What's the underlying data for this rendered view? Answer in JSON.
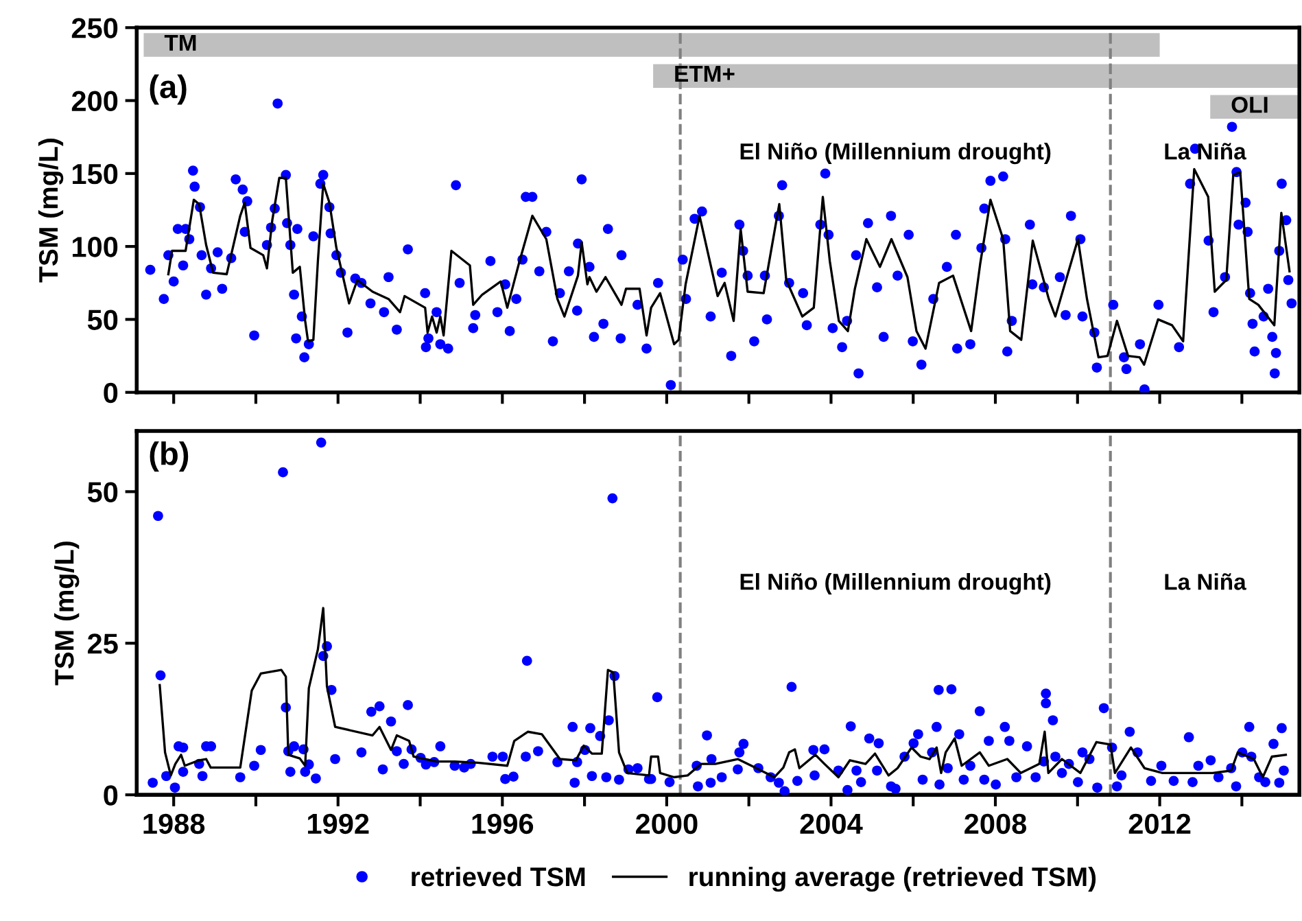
{
  "chart_data": [
    {
      "type": "scatter",
      "ylabel": "TSM (mg/L)",
      "xlim": [
        1987.1,
        2015.4
      ],
      "ylim": [
        0,
        250
      ],
      "xticks": [
        1988,
        {
          "value": 1990,
          "label": null
        },
        1992,
        {
          "value": 1994,
          "label": null
        },
        1996,
        {
          "value": 1998,
          "label": null
        },
        2000,
        {
          "value": 2002,
          "label": null
        },
        2004,
        {
          "value": 2006,
          "label": null
        },
        2008,
        {
          "value": 2010,
          "label": null
        },
        2012,
        {
          "value": 2014,
          "label": null
        }
      ],
      "yticks": [
        0,
        50,
        100,
        150,
        200,
        250
      ],
      "tick_labels": "y",
      "grid": false,
      "legend": false,
      "annotations": [
        "(a)",
        "El Niño (Millennium drought)",
        "La Niña"
      ],
      "ref_lines": [
        {
          "axis": "x",
          "value": 2000.33,
          "color": "#808080",
          "line_style": "dashed"
        },
        {
          "axis": "x",
          "value": 2010.8,
          "color": "#808080",
          "line_style": "dashed"
        }
      ],
      "bands": [
        {
          "axis": "x",
          "from": 1987.27,
          "to": 2012.0,
          "label": "TM",
          "color": "#bfbfbf"
        },
        {
          "axis": "x",
          "from": 1999.67,
          "to": 2015.4,
          "label": "ETM+",
          "color": "#bfbfbf"
        },
        {
          "axis": "x",
          "from": 2013.23,
          "to": 2015.4,
          "label": "OLI",
          "color": "#bfbfbf"
        }
      ],
      "series": [
        {
          "marker": "circle",
          "color": "#0000ff",
          "x": [
            1987.43,
            1987.76,
            1987.87,
            1988.0,
            1988.1,
            1988.23,
            1988.29,
            1988.38,
            1988.47,
            1988.51,
            1988.64,
            1988.68,
            1988.79,
            1988.91,
            1989.07,
            1989.18,
            1989.4,
            1989.51,
            1989.68,
            1989.79,
            1989.73,
            1989.96,
            1990.27,
            1990.37,
            1990.46,
            1990.53,
            1990.73,
            1990.76,
            1990.84,
            1990.93,
            1990.98,
            1991.01,
            1991.12,
            1991.18,
            1991.29,
            1991.4,
            1991.57,
            1991.64,
            1991.79,
            1991.82,
            1991.96,
            1992.07,
            1992.23,
            1992.42,
            1992.57,
            1992.79,
            1993.12,
            1993.23,
            1993.43,
            1993.7,
            1994.12,
            1994.14,
            1994.2,
            1994.4,
            1994.49,
            1994.68,
            1994.87,
            1994.96,
            1995.29,
            1995.34,
            1995.71,
            1995.88,
            1996.07,
            1996.18,
            1996.34,
            1996.49,
            1996.57,
            1996.73,
            1996.9,
            1997.07,
            1997.23,
            1997.4,
            1997.62,
            1997.84,
            1997.93,
            1997.82,
            1998.12,
            1998.23,
            1998.46,
            1998.57,
            1998.9,
            1998.88,
            1999.29,
            1999.51,
            1999.79,
            2000.1,
            2000.39,
            2000.47,
            2000.68,
            2000.86,
            2001.07,
            2001.34,
            2001.57,
            2001.77,
            2001.86,
            2001.97,
            2002.13,
            2002.39,
            2002.44,
            2002.73,
            2002.81,
            2002.98,
            2003.32,
            2003.41,
            2003.74,
            2003.86,
            2003.94,
            2004.04,
            2004.27,
            2004.39,
            2004.61,
            2004.67,
            2004.9,
            2005.12,
            2005.28,
            2005.46,
            2005.62,
            2005.89,
            2005.99,
            2006.2,
            2006.49,
            2006.82,
            2007.04,
            2007.07,
            2007.39,
            2007.66,
            2007.73,
            2007.88,
            2008.19,
            2008.24,
            2008.29,
            2008.4,
            2008.84,
            2008.9,
            2009.18,
            2009.57,
            2009.71,
            2009.84,
            2010.07,
            2010.12,
            2010.41,
            2010.47,
            2010.87,
            2011.13,
            2011.19,
            2011.52,
            2011.63,
            2011.97,
            2012.47,
            2012.74,
            2012.86,
            2013.19,
            2013.31,
            2013.59,
            2013.76,
            2013.87,
            2013.92,
            2014.09,
            2014.14,
            2014.2,
            2014.26,
            2014.31,
            2014.53,
            2014.64,
            2014.74,
            2014.8,
            2014.83,
            2014.91,
            2014.97,
            2015.08,
            2015.13,
            2015.21
          ],
          "values": [
            84,
            64,
            94,
            76,
            112,
            87,
            112,
            105,
            152,
            141,
            127,
            94,
            67,
            85,
            96,
            71,
            92,
            146,
            139,
            131,
            110,
            39,
            101,
            113,
            126,
            198,
            149,
            116,
            101,
            67,
            37,
            112,
            52,
            24,
            33,
            107,
            143,
            149,
            127,
            109,
            94,
            82,
            41,
            78,
            75,
            61,
            55,
            79,
            43,
            98,
            68,
            31,
            37,
            55,
            33,
            30,
            142,
            75,
            44,
            53,
            90,
            55,
            74,
            42,
            64,
            91,
            134,
            134,
            83,
            110,
            35,
            68,
            83,
            102,
            146,
            56,
            86,
            38,
            47,
            112,
            94,
            37,
            60,
            30,
            75,
            5,
            91,
            64,
            119,
            124,
            52,
            82,
            25,
            115,
            97,
            80,
            35,
            80,
            50,
            121,
            142,
            75,
            68,
            46,
            115,
            150,
            108,
            44,
            31,
            49,
            94,
            13,
            116,
            72,
            38,
            121,
            80,
            108,
            35,
            19,
            64,
            86,
            108,
            30,
            33,
            99,
            126,
            145,
            148,
            105,
            28,
            49,
            115,
            74,
            72,
            79,
            53,
            121,
            105,
            52,
            41,
            17,
            60,
            24,
            16,
            33,
            2,
            60,
            31,
            143,
            167,
            104,
            55,
            79,
            182,
            151,
            115,
            130,
            110,
            68,
            47,
            28,
            52,
            71,
            38,
            13,
            27,
            97,
            143,
            118,
            77,
            61
          ]
        },
        {
          "type": "line",
          "color": "#000000",
          "x": [
            1987.87,
            1987.96,
            1988.29,
            1988.49,
            1988.62,
            1988.79,
            1988.96,
            1989.29,
            1989.62,
            1989.73,
            1989.87,
            1990.18,
            1990.27,
            1990.4,
            1990.57,
            1990.73,
            1990.9,
            1991.07,
            1991.2,
            1991.27,
            1991.4,
            1991.51,
            1991.64,
            1991.79,
            1991.96,
            1992.27,
            1992.47,
            1992.84,
            1993.23,
            1993.51,
            1993.62,
            1994.12,
            1994.18,
            1994.29,
            1994.4,
            1994.49,
            1994.57,
            1994.76,
            1995.21,
            1995.29,
            1995.51,
            1995.96,
            1996.12,
            1996.4,
            1996.73,
            1997.07,
            1997.34,
            1997.51,
            1997.84,
            1997.93,
            1998.07,
            1998.12,
            1998.29,
            1998.51,
            1998.9,
            1999.01,
            1999.34,
            1999.51,
            1999.62,
            1999.84,
            2000.18,
            2000.29,
            2000.46,
            2000.8,
            2001.24,
            2001.41,
            2001.63,
            2001.8,
            2001.97,
            2002.36,
            2002.74,
            2002.91,
            2003.3,
            2003.58,
            2003.8,
            2003.97,
            2004.19,
            2004.41,
            2004.58,
            2004.86,
            2005.19,
            2005.47,
            2005.86,
            2006.08,
            2006.3,
            2006.63,
            2006.97,
            2007.41,
            2007.63,
            2007.88,
            2008.19,
            2008.36,
            2008.63,
            2008.91,
            2009.3,
            2009.46,
            2010.01,
            2010.23,
            2010.51,
            2010.73,
            2010.96,
            2011.23,
            2011.51,
            2011.62,
            2011.96,
            2012.3,
            2012.57,
            2012.84,
            2013.18,
            2013.34,
            2013.62,
            2013.79,
            2013.96,
            2014.18,
            2014.4,
            2014.79,
            2014.96,
            2015.16
          ],
          "values": [
            81,
            97,
            97,
            132,
            129,
            101,
            82,
            81,
            121,
            130,
            99,
            94,
            85,
            118,
            147,
            147,
            82,
            86,
            49,
            35,
            36,
            90,
            143,
            130,
            99,
            61,
            77,
            69,
            64,
            55,
            66,
            58,
            41,
            52,
            41,
            52,
            39,
            97,
            87,
            60,
            67,
            76,
            58,
            88,
            121,
            105,
            64,
            52,
            80,
            103,
            74,
            79,
            69,
            79,
            60,
            71,
            71,
            39,
            58,
            68,
            33,
            36,
            74,
            121,
            66,
            75,
            49,
            112,
            69,
            68,
            129,
            77,
            52,
            58,
            134,
            90,
            49,
            42,
            71,
            105,
            86,
            105,
            79,
            42,
            30,
            75,
            80,
            42,
            88,
            132,
            105,
            42,
            36,
            104,
            64,
            52,
            105,
            64,
            24,
            25,
            49,
            25,
            24,
            19,
            50,
            46,
            35,
            153,
            134,
            69,
            77,
            149,
            151,
            64,
            60,
            46,
            123,
            83
          ]
        }
      ]
    },
    {
      "type": "scatter",
      "ylabel": "TSM (mg/L)",
      "xlim": [
        1987.1,
        2015.4
      ],
      "ylim": [
        0,
        60
      ],
      "xticks": [
        1988,
        {
          "value": 1990,
          "label": null
        },
        1992,
        {
          "value": 1994,
          "label": null
        },
        1996,
        {
          "value": 1998,
          "label": null
        },
        2000,
        {
          "value": 2002,
          "label": null
        },
        2004,
        {
          "value": 2006,
          "label": null
        },
        2008,
        {
          "value": 2010,
          "label": null
        },
        2012,
        {
          "value": 2014,
          "label": null
        }
      ],
      "yticks": [
        0,
        25,
        50
      ],
      "grid": false,
      "legend": "bottom",
      "annotations": [
        "(b)",
        "El Niño (Millennium drought)",
        "La Niña"
      ],
      "ref_lines": [
        {
          "axis": "x",
          "value": 2000.33,
          "color": "#808080",
          "line_style": "dashed"
        },
        {
          "axis": "x",
          "value": 2010.8,
          "color": "#808080",
          "line_style": "dashed"
        }
      ],
      "series": [
        {
          "marker": "circle",
          "name": "retrieved TSM",
          "color": "#0000ff",
          "x": [
            1987.49,
            1987.62,
            1987.68,
            1987.82,
            1988.03,
            1988.12,
            1988.23,
            1988.23,
            1988.62,
            1988.7,
            1988.79,
            1988.91,
            1989.62,
            1989.96,
            1990.12,
            1990.66,
            1990.73,
            1990.79,
            1990.84,
            1990.93,
            1991.16,
            1991.2,
            1991.29,
            1991.46,
            1991.59,
            1991.64,
            1991.73,
            1991.84,
            1991.93,
            1992.57,
            1992.81,
            1993.01,
            1993.09,
            1993.29,
            1993.43,
            1993.6,
            1993.7,
            1993.79,
            1994.01,
            1994.14,
            1994.34,
            1994.49,
            1994.84,
            1995.07,
            1995.23,
            1995.76,
            1996.01,
            1996.07,
            1996.27,
            1996.57,
            1996.6,
            1996.87,
            1997.34,
            1997.71,
            1997.76,
            1997.82,
            1998.01,
            1998.14,
            1998.18,
            1998.38,
            1998.53,
            1998.59,
            1998.68,
            1998.73,
            1998.84,
            1999.07,
            1999.29,
            1999.57,
            1999.77,
            1999.62,
            2000.07,
            2000.73,
            2000.76,
            2000.98,
            2001.07,
            2001.09,
            2001.34,
            2001.73,
            2001.77,
            2001.87,
            2002.23,
            2002.53,
            2002.73,
            2002.87,
            2003.04,
            2003.18,
            2003.57,
            2003.6,
            2003.84,
            2004.18,
            2004.4,
            2004.48,
            2004.62,
            2004.73,
            2004.93,
            2005.12,
            2005.16,
            2005.46,
            2005.57,
            2005.79,
            2006.01,
            2006.12,
            2006.23,
            2006.46,
            2006.57,
            2006.62,
            2006.64,
            2006.84,
            2006.93,
            2007.12,
            2007.23,
            2007.39,
            2007.62,
            2007.73,
            2007.84,
            2008.01,
            2008.23,
            2008.34,
            2008.51,
            2008.77,
            2008.98,
            2009.18,
            2009.23,
            2009.23,
            2009.4,
            2009.46,
            2009.62,
            2009.79,
            2010.01,
            2010.12,
            2010.29,
            2010.48,
            2010.64,
            2010.84,
            2010.96,
            2011.07,
            2011.27,
            2011.46,
            2011.79,
            2012.04,
            2012.34,
            2012.71,
            2012.8,
            2012.94,
            2013.24,
            2013.43,
            2013.74,
            2013.86,
            2014.01,
            2014.18,
            2014.23,
            2014.42,
            2014.57,
            2014.77,
            2014.91,
            2014.97,
            2015.02
          ],
          "values": [
            2.0,
            46,
            19.7,
            3.1,
            1.2,
            8,
            3.8,
            7.8,
            5.1,
            3.1,
            8,
            8,
            2.9,
            4.8,
            7.4,
            53.2,
            14.4,
            7.2,
            3.8,
            8,
            7.5,
            3.8,
            5,
            2.7,
            58.1,
            22.9,
            24.5,
            17.3,
            5.9,
            7,
            13.7,
            14.6,
            4.2,
            12.1,
            7.2,
            5.1,
            14.8,
            7.5,
            6.1,
            5,
            5.4,
            8,
            4.8,
            4.5,
            5.1,
            6.3,
            6.3,
            2.6,
            3,
            6.3,
            22.1,
            7.2,
            5.4,
            11.2,
            2,
            5.4,
            7.4,
            11,
            3.1,
            9.7,
            2.9,
            12.3,
            48.9,
            19.6,
            2.5,
            4.2,
            4.4,
            2.6,
            16.1,
            2.6,
            2.1,
            4.8,
            1.4,
            9.8,
            2,
            5.9,
            2.9,
            4.2,
            7,
            8.4,
            4.4,
            2.9,
            2,
            0.6,
            17.8,
            2.3,
            7.4,
            3.2,
            7.5,
            4,
            0.8,
            11.3,
            4,
            2.1,
            9.3,
            4,
            8.5,
            1.4,
            1,
            6.3,
            8.5,
            10,
            2.5,
            7,
            11.2,
            17.3,
            1.7,
            4.4,
            17.4,
            10,
            2.5,
            4.8,
            13.8,
            2.5,
            8.9,
            1.7,
            11.2,
            8.9,
            2.9,
            8,
            2.9,
            5.5,
            16.7,
            15.1,
            12.3,
            6.3,
            3.6,
            5.1,
            2.1,
            7,
            5.9,
            1.2,
            14.3,
            7.8,
            1.4,
            3.2,
            10.4,
            7,
            2.3,
            4.8,
            2.3,
            9.5,
            2.1,
            4.8,
            5.7,
            2.9,
            4.4,
            1.4,
            7,
            11.2,
            6.3,
            2.9,
            2.1,
            8.4,
            2,
            11,
            4
          ]
        },
        {
          "type": "line",
          "name": "running average (retrieved TSM)",
          "color": "#000000",
          "x": [
            1987.66,
            1987.79,
            1987.93,
            1988.04,
            1988.18,
            1988.27,
            1988.62,
            1988.79,
            1988.9,
            1989.62,
            1989.9,
            1990.12,
            1990.62,
            1990.73,
            1990.79,
            1991.07,
            1991.2,
            1991.29,
            1991.51,
            1991.64,
            1991.73,
            1991.93,
            1992.84,
            1993.01,
            1993.29,
            1993.43,
            1993.73,
            1993.84,
            1994.4,
            1994.84,
            1995.4,
            1996.12,
            1996.29,
            1996.62,
            1996.96,
            1997.4,
            1997.79,
            1997.98,
            1998.18,
            1998.42,
            1998.57,
            1998.7,
            1998.84,
            1999.04,
            1999.57,
            1999.62,
            1999.79,
            1999.84,
            2000.18,
            2000.51,
            2000.84,
            2001.18,
            2001.73,
            2002.18,
            2002.62,
            2002.84,
            2002.98,
            2003.12,
            2003.23,
            2003.62,
            2003.84,
            2004.18,
            2004.46,
            2004.84,
            2005.07,
            2005.4,
            2005.62,
            2005.96,
            2006.18,
            2006.4,
            2006.57,
            2006.68,
            2006.79,
            2007.01,
            2007.18,
            2007.62,
            2007.84,
            2008.29,
            2008.62,
            2009.07,
            2009.2,
            2009.29,
            2009.62,
            2010.07,
            2010.46,
            2010.8,
            2010.91,
            2011.3,
            2011.63,
            2012.07,
            2012.73,
            2013.29,
            2013.74,
            2013.9,
            2014.29,
            2014.51,
            2014.73,
            2015.07
          ],
          "values": [
            18.1,
            7,
            3.2,
            5.1,
            6.6,
            4.8,
            5.7,
            5.9,
            4.5,
            4.5,
            17.2,
            20,
            20.6,
            19.5,
            6.6,
            6,
            4.8,
            17.6,
            24,
            30.8,
            17.9,
            11.2,
            9.8,
            11.2,
            7.4,
            9.8,
            8.9,
            6.3,
            5.5,
            5.5,
            5.3,
            4.8,
            8.9,
            10.4,
            10,
            5.9,
            5.7,
            8.1,
            6.8,
            6.8,
            20.6,
            20.2,
            7,
            3.6,
            3.2,
            6.3,
            6.3,
            3.6,
            2.9,
            3.2,
            5.1,
            5.1,
            5.9,
            4.4,
            2.9,
            4.5,
            7,
            7.5,
            4.4,
            6.6,
            5.1,
            2.9,
            5.7,
            5.1,
            6.8,
            3.2,
            4.4,
            7.8,
            6.3,
            5.9,
            7.8,
            3.6,
            7,
            9.3,
            4.8,
            7,
            4.8,
            5.9,
            3.6,
            5.1,
            10.4,
            3.6,
            5.9,
            3.6,
            8.7,
            8.3,
            3.6,
            7.8,
            4.4,
            3.6,
            3.6,
            3.6,
            4,
            7,
            5.9,
            2.9,
            6.3,
            6.6
          ]
        }
      ]
    }
  ]
}
